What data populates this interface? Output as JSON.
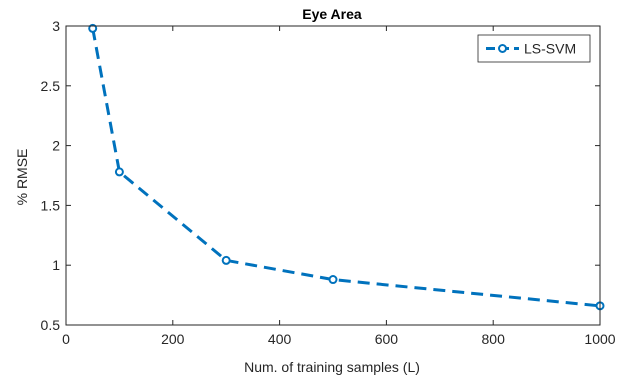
{
  "chart_data": {
    "type": "line",
    "title": "Eye Area",
    "xlabel": "Num. of training samples (L)",
    "ylabel": "% RMSE",
    "xlim": [
      0,
      1000
    ],
    "ylim": [
      0.5,
      3
    ],
    "xticks": [
      0,
      200,
      400,
      600,
      800,
      1000
    ],
    "yticks": [
      0.5,
      1,
      1.5,
      2,
      2.5,
      3
    ],
    "xtick_labels": [
      "0",
      "200",
      "400",
      "600",
      "800",
      "1000"
    ],
    "ytick_labels": [
      "0.5",
      "1",
      "1.5",
      "2",
      "2.5",
      "3"
    ],
    "grid": false,
    "legend_position": "top-right",
    "series": [
      {
        "name": "LS-SVM",
        "color": "#0072BD",
        "line_style": "dashed",
        "marker": "circle",
        "x": [
          50,
          100,
          300,
          500,
          1000
        ],
        "y": [
          2.98,
          1.78,
          1.04,
          0.88,
          0.66
        ]
      }
    ]
  }
}
